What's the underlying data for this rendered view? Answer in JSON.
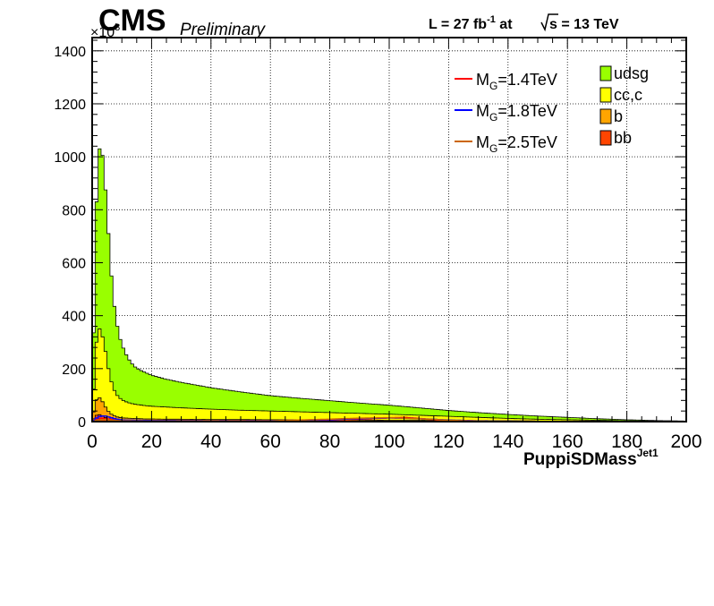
{
  "header": {
    "experiment": "CMS",
    "status": "Preliminary",
    "lumi_prefix": "L = 27 fb",
    "lumi_exp": "-1",
    "lumi_mid": " at ",
    "sqrt_s": "s",
    "energy_suffix": " = 13 TeV"
  },
  "chart_data": {
    "type": "area",
    "subtype": "stacked-histogram",
    "title": "",
    "xlabel": "PuppiSDMass",
    "xlabel_sup": "Jet1",
    "ylabel": "",
    "y_multiplier": "×10",
    "y_multiplier_exp": "3",
    "xlim": [
      0,
      200
    ],
    "ylim": [
      0,
      1450
    ],
    "grid": true,
    "x_ticks": [
      0,
      20,
      40,
      60,
      80,
      100,
      120,
      140,
      160,
      180,
      200
    ],
    "y_ticks": [
      0,
      200,
      400,
      600,
      800,
      1000,
      1200,
      1400
    ],
    "bin_width": 1,
    "stack_order": [
      "bb",
      "b",
      "cc,c",
      "udsg"
    ],
    "background_colors": {
      "udsg": "#99ff00",
      "cc,c": "#ffff00",
      "b": "#ffa500",
      "bb": "#ff4500"
    },
    "backgrounds_legend": [
      "udsg",
      "cc,c",
      "b",
      "bb"
    ],
    "stacked_totals_knots": {
      "x": [
        0,
        1,
        2,
        3,
        4,
        5,
        6,
        7,
        8,
        9,
        10,
        12,
        14,
        16,
        18,
        20,
        25,
        30,
        40,
        50,
        60,
        70,
        80,
        90,
        100,
        110,
        120,
        130,
        140,
        150,
        160,
        170,
        180,
        190,
        200
      ],
      "udsg_top": [
        10,
        660,
        1000,
        1060,
        950,
        800,
        620,
        480,
        390,
        330,
        290,
        240,
        210,
        195,
        185,
        175,
        160,
        148,
        128,
        112,
        98,
        88,
        79,
        70,
        62,
        52,
        42,
        34,
        27,
        21,
        16,
        11,
        7,
        4,
        2
      ],
      "ccc_top": [
        5,
        240,
        360,
        340,
        300,
        230,
        170,
        130,
        105,
        92,
        82,
        72,
        66,
        63,
        60,
        58,
        55,
        52,
        47,
        43,
        40,
        37,
        34,
        31,
        28,
        24,
        20,
        16,
        12,
        9,
        7,
        5,
        3,
        2,
        1
      ],
      "b_top": [
        3,
        70,
        95,
        85,
        65,
        45,
        32,
        24,
        19,
        16,
        14,
        13,
        12,
        11,
        10,
        10,
        9,
        9,
        8,
        8,
        7,
        7,
        6,
        6,
        5,
        5,
        4,
        3,
        3,
        2,
        2,
        1,
        1,
        1,
        0
      ],
      "bb_top": [
        1,
        20,
        28,
        24,
        18,
        12,
        8,
        6,
        5,
        4,
        4,
        3,
        3,
        3,
        3,
        3,
        2,
        2,
        2,
        2,
        2,
        2,
        2,
        2,
        1,
        1,
        1,
        1,
        1,
        1,
        0,
        0,
        0,
        0,
        0
      ]
    },
    "signals": [
      {
        "name": "M_G=1.4TeV",
        "label_main": "M",
        "label_sub": "G",
        "label_rest": "=1.4TeV",
        "color": "#ff0000",
        "x": [
          0,
          2,
          4,
          6,
          8,
          10,
          20,
          40,
          60,
          80,
          90,
          100,
          105,
          110,
          115,
          120,
          130,
          150,
          200
        ],
        "y": [
          0,
          10,
          12,
          9,
          6,
          4,
          3,
          3,
          4,
          6,
          9,
          14,
          16,
          12,
          7,
          4,
          2,
          1,
          0
        ]
      },
      {
        "name": "M_G=1.8TeV",
        "label_main": "M",
        "label_sub": "G",
        "label_rest": "=1.8TeV",
        "color": "#0000ff",
        "x": [
          0,
          2,
          4,
          6,
          8,
          10,
          20,
          40,
          60,
          80,
          90,
          100,
          110,
          120,
          130,
          150,
          200
        ],
        "y": [
          0,
          18,
          22,
          16,
          10,
          6,
          4,
          3,
          4,
          7,
          11,
          14,
          11,
          6,
          3,
          1,
          0
        ]
      },
      {
        "name": "M_G=2.5TeV",
        "label_main": "M",
        "label_sub": "G",
        "label_rest": "=2.5TeV",
        "color": "#cc6600",
        "x": [
          0,
          2,
          4,
          6,
          8,
          10,
          20,
          40,
          60,
          80,
          90,
          100,
          110,
          120,
          130,
          150,
          200
        ],
        "y": [
          0,
          6,
          8,
          6,
          4,
          3,
          2,
          2,
          3,
          9,
          13,
          15,
          11,
          5,
          2,
          1,
          0
        ]
      }
    ]
  }
}
